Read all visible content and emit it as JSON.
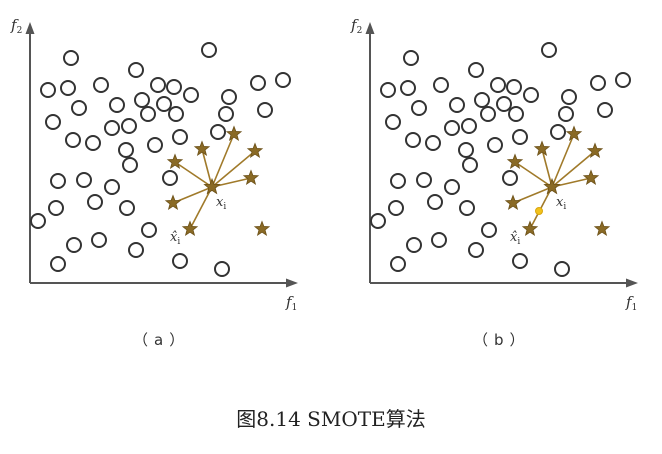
{
  "caption": "图8.14    SMOTE算法",
  "panels": [
    {
      "id": "a",
      "label": "（a）",
      "x_axis_label": "f",
      "x_axis_sub": "1",
      "y_axis_label": "f",
      "y_axis_sub": "2",
      "center_label": "x",
      "center_sub": "i",
      "neighbor_label": "x̂",
      "neighbor_sub": "i",
      "synthetic_point": false
    },
    {
      "id": "b",
      "label": "（b）",
      "x_axis_label": "f",
      "x_axis_sub": "1",
      "y_axis_label": "f",
      "y_axis_sub": "2",
      "center_label": "x",
      "center_sub": "i",
      "neighbor_label": "x̂",
      "neighbor_sub": "i",
      "synthetic_point": true
    }
  ],
  "colors": {
    "star": "#8a6a25",
    "ray": "#a07a2a",
    "synthetic": "#f2c21b"
  }
}
